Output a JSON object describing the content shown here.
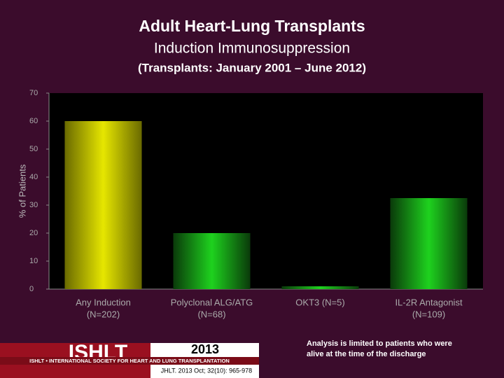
{
  "chart_data": {
    "type": "bar",
    "title": "Adult Heart-Lung Transplants",
    "subtitle": "Induction Immunosuppression",
    "subtitle2": "(Transplants: January 2001 – June 2012)",
    "y_label": "% of Patients",
    "categories": [
      [
        "Any Induction",
        "(N=202)"
      ],
      [
        "Polyclonal ALG/ATG",
        "(N=68)"
      ],
      [
        "OKT3 (N=5)"
      ],
      [
        "IL-2R Antagonist",
        "(N=109)"
      ]
    ],
    "values": [
      60,
      20,
      1,
      32.5
    ],
    "colors": [
      "#e6e600",
      "#1ed21e",
      "#1ed21e",
      "#1ed21e"
    ],
    "ylim": [
      0,
      70
    ],
    "yticks": [
      0,
      10,
      20,
      30,
      40,
      50,
      60,
      70
    ],
    "note": [
      "Analysis is limited to patients who were",
      "alive at the time of the discharge"
    ]
  },
  "footer": {
    "logo": "ISHLT",
    "society": "ISHLT • INTERNATIONAL SOCIETY FOR HEART AND LUNG TRANSPLANTATION",
    "year": "2013",
    "citation": "JHLT. 2013 Oct; 32(10): 965-978"
  }
}
